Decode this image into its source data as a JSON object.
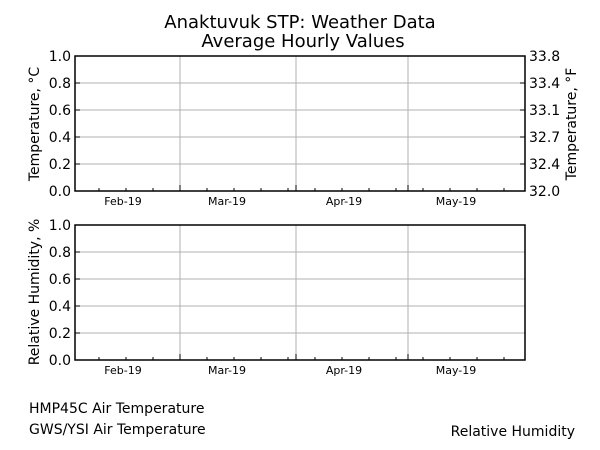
{
  "title": "Anaktuvuk STP: Weather Data",
  "subtitle": "Average Hourly Values",
  "chart_data": [
    {
      "type": "line",
      "ylabel": "Temperature, °C",
      "ylabel_right": "Temperature, °F",
      "ylim": [
        0.0,
        1.0
      ],
      "yticks": [
        "0.0",
        "0.2",
        "0.4",
        "0.6",
        "0.8",
        "1.0"
      ],
      "yticks_right": [
        "32.0",
        "32.4",
        "32.7",
        "33.1",
        "33.4",
        "33.8"
      ],
      "xticks": [
        "Feb-19",
        "Mar-19",
        "Apr-19",
        "May-19"
      ],
      "grid": true,
      "series": []
    },
    {
      "type": "line",
      "ylabel": "Relative Humidity, %",
      "ylim": [
        0.0,
        1.0
      ],
      "yticks": [
        "0.0",
        "0.2",
        "0.4",
        "0.6",
        "0.8",
        "1.0"
      ],
      "xticks": [
        "Feb-19",
        "Mar-19",
        "Apr-19",
        "May-19"
      ],
      "grid": true,
      "series": []
    }
  ],
  "legend": {
    "items_left": [
      "HMP45C Air Temperature",
      "GWS/YSI Air Temperature"
    ],
    "items_right": [
      "Relative Humidity"
    ]
  }
}
